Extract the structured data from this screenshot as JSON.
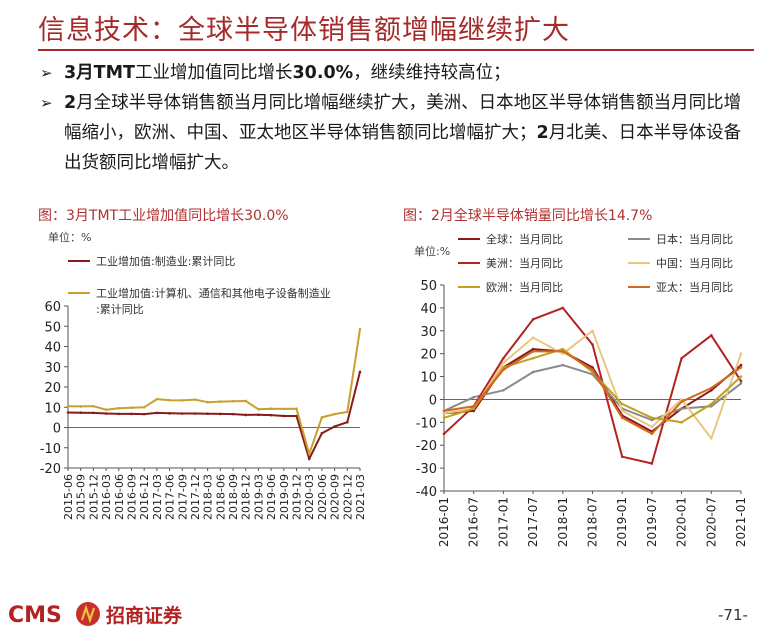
{
  "slide": {
    "title": "信息技术：全球半导体销售额增幅继续扩大",
    "bullets": [
      {
        "pre": "",
        "bold": "3月TMT",
        "post1": "工业增加值同比增长",
        "bold2": "30.0%",
        "post2": "，继续维持较高位；"
      },
      {
        "pre": "",
        "bold": "2",
        "post1": "月全球半导体销售额当月同比增幅继续扩大，美洲、日本地区半导体销售额当月同比增幅缩小，欧洲、中国、亚太地区半导体销售额同比增幅扩大；",
        "bold2": "2",
        "post2": "月北美、日本半导体设备出货额同比增幅扩大。"
      }
    ],
    "bullet_glyph": "➢",
    "footer": {
      "brand_text": "CMS",
      "brand_cn": "招商证券",
      "page": "-71-"
    }
  },
  "chart_data": [
    {
      "type": "line",
      "title": "图：3月TMT工业增加值同比增长30.0%",
      "unit_label": "单位：%",
      "ylim": [
        -20,
        60
      ],
      "yticks": [
        60,
        50,
        40,
        30,
        20,
        10,
        0,
        -10,
        -20
      ],
      "x": [
        "2015-06",
        "2015-09",
        "2015-12",
        "2016-03",
        "2016-06",
        "2016-09",
        "2016-12",
        "2017-03",
        "2017-06",
        "2017-09",
        "2017-12",
        "2018-03",
        "2018-06",
        "2018-09",
        "2018-12",
        "2019-03",
        "2019-06",
        "2019-09",
        "2019-12",
        "2020-03",
        "2020-06",
        "2020-09",
        "2020-12",
        "2021-03"
      ],
      "series": [
        {
          "name": "工业增加值:制造业:累计同比",
          "color": "#8b1a1a",
          "values": [
            7.4,
            7.3,
            7.2,
            6.9,
            6.7,
            6.7,
            6.6,
            7.2,
            7.0,
            6.9,
            6.9,
            6.8,
            6.7,
            6.6,
            6.2,
            6.3,
            6.1,
            5.7,
            5.7,
            -15.5,
            -2.8,
            0.5,
            2.6,
            27.5
          ]
        },
        {
          "name": "工业增加值:计算机、通信和其他电子设备制造业:累计同比",
          "color": "#c8a030",
          "values": [
            10.5,
            10.4,
            10.5,
            8.8,
            9.5,
            9.8,
            10.0,
            14.0,
            13.5,
            13.4,
            13.8,
            12.5,
            12.8,
            13.0,
            13.1,
            9.0,
            9.3,
            9.2,
            9.3,
            -13.0,
            5.0,
            6.6,
            7.7,
            48.5
          ]
        }
      ]
    },
    {
      "type": "line",
      "title": "图：2月全球半导体销量同比增长14.7%",
      "unit_label": "单位:%",
      "ylim": [
        -40,
        50
      ],
      "yticks": [
        50,
        40,
        30,
        20,
        10,
        0,
        -10,
        -20,
        -30,
        -40
      ],
      "x": [
        "2016-01",
        "2016-07",
        "2017-01",
        "2017-07",
        "2018-01",
        "2018-07",
        "2019-01",
        "2019-07",
        "2020-01",
        "2020-07",
        "2021-01"
      ],
      "series": [
        {
          "name": "全球：当月同比",
          "color": "#8b1a1a",
          "values": [
            -6,
            -5,
            14,
            22,
            21,
            14,
            -7,
            -14,
            -4,
            4,
            15
          ]
        },
        {
          "name": "日本：当月同比",
          "color": "#8a8a8a",
          "values": [
            -5,
            1,
            4,
            12,
            15,
            11,
            -4,
            -9,
            -4,
            -3,
            7
          ]
        },
        {
          "name": "美洲：当月同比",
          "color": "#b22222",
          "values": [
            -15,
            -3,
            18,
            35,
            40,
            24,
            -25,
            -28,
            18,
            28,
            8
          ]
        },
        {
          "name": "中国：当月同比",
          "color": "#e8c880",
          "values": [
            -6,
            -4,
            16,
            27,
            20,
            30,
            -5,
            -12,
            0,
            -17,
            20
          ]
        },
        {
          "name": "欧洲：当月同比",
          "color": "#c0a020",
          "values": [
            -8,
            -4,
            14,
            18,
            22,
            12,
            -2,
            -8,
            -10,
            -2,
            10
          ]
        },
        {
          "name": "亚太：当月同比",
          "color": "#d2691e",
          "values": [
            -5,
            -3,
            13,
            21,
            21,
            13,
            -8,
            -15,
            -1,
            5,
            14
          ]
        }
      ]
    }
  ]
}
